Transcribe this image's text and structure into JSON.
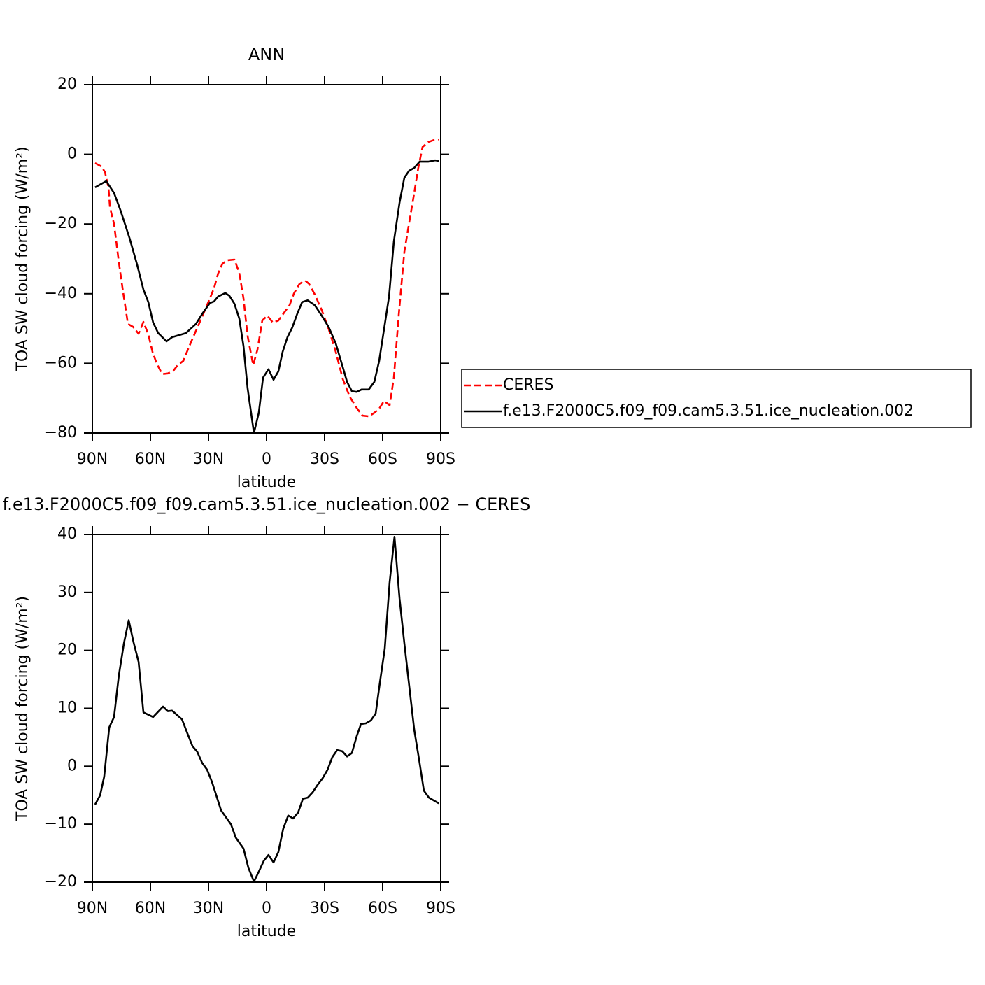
{
  "chart_data": [
    {
      "type": "line",
      "title": "ANN",
      "xlabel": "latitude",
      "ylabel": "TOA SW cloud forcing (W/m²)",
      "xlim": [
        90,
        -90
      ],
      "xticks": [
        {
          "value": 90,
          "label": "90N"
        },
        {
          "value": 60,
          "label": "60N"
        },
        {
          "value": 30,
          "label": "30N"
        },
        0,
        {
          "value": -30,
          "label": "30S"
        },
        {
          "value": -60,
          "label": "60S"
        },
        {
          "value": -90,
          "label": "90S"
        }
      ],
      "ylim": [
        -80,
        20
      ],
      "yticks": [
        {
          "value": -80,
          "label": "−80"
        },
        {
          "value": -60,
          "label": "−60"
        },
        {
          "value": -40,
          "label": "−40"
        },
        {
          "value": -20,
          "label": "−20"
        },
        0,
        20
      ],
      "legend": "right",
      "series": [
        {
          "name": "CERES",
          "color": "#ff0000",
          "dash": true,
          "x": [
            88.6,
            85.3,
            83.5,
            81.7,
            80.9,
            78.8,
            76.3,
            74.1,
            71.6,
            69,
            66.1,
            63.6,
            61.1,
            58.9,
            56.7,
            53.9,
            51,
            48.1,
            45.9,
            43,
            40.1,
            36.5,
            32.9,
            29.3,
            27.1,
            25,
            22.8,
            20.3,
            16.6,
            14.1,
            11.9,
            9.8,
            6.9,
            4.7,
            2.2,
            -0.4,
            -3.3,
            -6.1,
            -9,
            -11.9,
            -14.1,
            -17,
            -19.9,
            -22,
            -24.9,
            -28.5,
            -32.2,
            -35.8,
            -39.4,
            -43,
            -46.6,
            -49.5,
            -52.8,
            -55.7,
            -58.2,
            -60.7,
            -63.6,
            -65.8,
            -68.3,
            -71.2,
            -73.7,
            -76.3,
            -78.4,
            -80.6,
            -83.5,
            -86.4,
            -89.2
          ],
          "values": [
            -2.5,
            -3.5,
            -5.1,
            -9.5,
            -15.3,
            -20,
            -31,
            -39.6,
            -48.7,
            -49.5,
            -51.5,
            -48.1,
            -51.7,
            -56.7,
            -60.1,
            -63.1,
            -62.9,
            -62.1,
            -60.5,
            -59.3,
            -55.3,
            -50.7,
            -46.1,
            -41.4,
            -38.4,
            -34.2,
            -31.4,
            -30.4,
            -30.2,
            -34,
            -41.4,
            -52.1,
            -60.5,
            -56.1,
            -47.7,
            -46.3,
            -48.3,
            -47.7,
            -45.5,
            -43.3,
            -40,
            -37.2,
            -36.2,
            -37.2,
            -40.2,
            -44.7,
            -50.3,
            -56.7,
            -64.5,
            -69.6,
            -72.8,
            -75,
            -75.2,
            -74.2,
            -73,
            -70.8,
            -72,
            -64.1,
            -46.1,
            -28,
            -19.6,
            -11.1,
            -3.9,
            2.1,
            3.5,
            4.1,
            4.3
          ]
        },
        {
          "name": "f.e13.F2000C5.f09_f09.cam5.3.51.ice_nucleation.002",
          "color": "#000000",
          "dash": false,
          "x": [
            88.6,
            82.8,
            78.8,
            75.5,
            70.8,
            66.9,
            63.6,
            61.1,
            58.6,
            56,
            51.7,
            48.8,
            45.2,
            41.6,
            36.5,
            32.9,
            29.3,
            27.1,
            25,
            21.3,
            19.2,
            16.6,
            14.1,
            11.9,
            9.8,
            6.5,
            4,
            1.8,
            -1,
            -3.6,
            -6.1,
            -8.3,
            -10.8,
            -13.3,
            -15.9,
            -18.4,
            -21.3,
            -24.9,
            -28.5,
            -32.2,
            -35.8,
            -39.4,
            -41.6,
            -44.1,
            -46.6,
            -49.1,
            -52.8,
            -55.7,
            -58.2,
            -60.7,
            -63.3,
            -65.8,
            -68.7,
            -71.2,
            -73.7,
            -76.3,
            -79.1,
            -83.5,
            -87.1,
            -89.2
          ],
          "values": [
            -9.5,
            -7.7,
            -11.1,
            -16,
            -24,
            -31.6,
            -38.8,
            -42.4,
            -48.3,
            -51.3,
            -53.7,
            -52.5,
            -51.9,
            -51.3,
            -48.7,
            -45.5,
            -42.7,
            -42.2,
            -40.8,
            -39.8,
            -40.6,
            -42.9,
            -47.1,
            -55.1,
            -67.1,
            -80,
            -74.2,
            -64.1,
            -61.7,
            -64.7,
            -62.3,
            -56.7,
            -52.5,
            -49.7,
            -45.7,
            -42.4,
            -41.9,
            -43.3,
            -46.3,
            -49.7,
            -54.3,
            -61.1,
            -65.3,
            -68,
            -68.2,
            -67.5,
            -67.5,
            -65.3,
            -59.3,
            -50.3,
            -40.8,
            -25,
            -13.9,
            -6.7,
            -4.7,
            -3.9,
            -2.1,
            -2.1,
            -1.7,
            -1.9
          ]
        }
      ]
    },
    {
      "type": "line",
      "title": "f.e13.F2000C5.f09_f09.cam5.3.51.ice_nucleation.002 − CERES",
      "xlabel": "latitude",
      "ylabel": "TOA SW cloud forcing (W/m²)",
      "xlim": [
        90,
        -90
      ],
      "xticks": [
        {
          "value": 90,
          "label": "90N"
        },
        {
          "value": 60,
          "label": "60N"
        },
        {
          "value": 30,
          "label": "30N"
        },
        0,
        {
          "value": -30,
          "label": "30S"
        },
        {
          "value": -60,
          "label": "60S"
        },
        {
          "value": -90,
          "label": "90S"
        }
      ],
      "ylim": [
        -20,
        40
      ],
      "yticks": [
        {
          "value": -20,
          "label": "−20"
        },
        {
          "value": -10,
          "label": "−10"
        },
        0,
        10,
        20,
        30,
        40
      ],
      "series": [
        {
          "color": "#000000",
          "dash": false,
          "x": [
            88.6,
            86,
            83.9,
            81.3,
            78.8,
            76.3,
            73.7,
            71.2,
            68.7,
            66.1,
            63.6,
            58.6,
            53.5,
            51,
            48.8,
            43.7,
            40.9,
            38.3,
            35.8,
            33.3,
            30.7,
            28.2,
            23.5,
            18.4,
            15.9,
            11.9,
            9.4,
            6.5,
            4,
            1.4,
            -1,
            -3.6,
            -6.1,
            -8.6,
            -11.2,
            -13.7,
            -16.3,
            -18.8,
            -21.3,
            -23.8,
            -26.4,
            -28.9,
            -31.5,
            -34,
            -36.5,
            -39.1,
            -41.6,
            -44.1,
            -46.6,
            -48.8,
            -51.3,
            -53.9,
            -56.4,
            -58.6,
            -61.1,
            -63.6,
            -66.1,
            -68.7,
            -71.2,
            -73.7,
            -76.3,
            -78.8,
            -81.3,
            -83.9,
            -89
          ],
          "values": [
            -6.6,
            -5,
            -1.8,
            6.7,
            8.5,
            15.7,
            21.2,
            25.2,
            21.4,
            18,
            9.3,
            8.5,
            10.3,
            9.5,
            9.6,
            8.1,
            5.7,
            3.5,
            2.5,
            0.6,
            -0.6,
            -2.7,
            -7.6,
            -10,
            -12.3,
            -14.2,
            -17.5,
            -19.9,
            -18.2,
            -16.3,
            -15.3,
            -16.6,
            -14.8,
            -10.8,
            -8.5,
            -9,
            -8,
            -5.6,
            -5.4,
            -4.5,
            -3.2,
            -2.1,
            -0.6,
            1.6,
            2.8,
            2.6,
            1.7,
            2.3,
            5.2,
            7.3,
            7.4,
            7.9,
            9.1,
            14.5,
            20.3,
            31.8,
            39.6,
            29,
            21.2,
            13.9,
            6.3,
            1.2,
            -4.2,
            -5.4,
            -6.4
          ]
        }
      ]
    }
  ]
}
